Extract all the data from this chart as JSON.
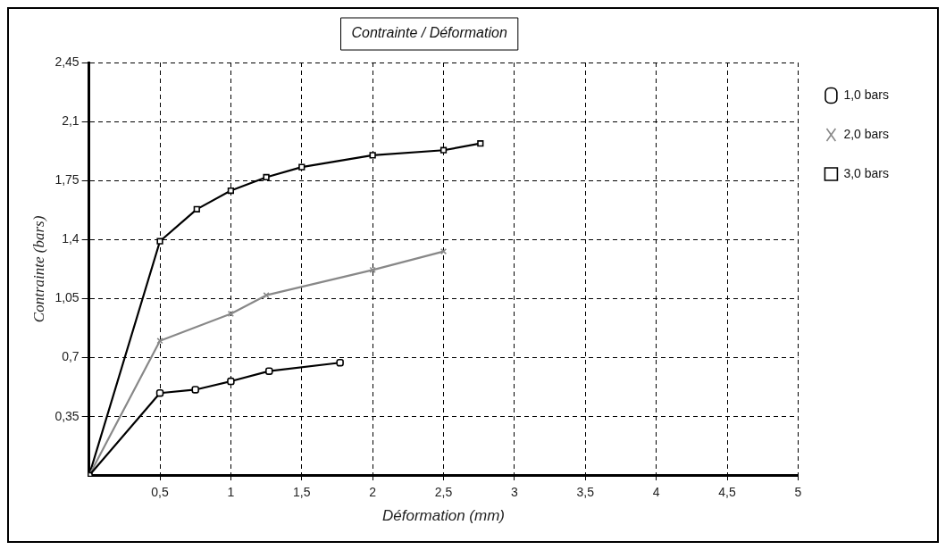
{
  "chart_data": {
    "type": "line",
    "title": "Contrainte / Déformation",
    "xlabel": "Déformation (mm)",
    "ylabel": "Contrainte (bars)",
    "xlim": [
      0,
      5
    ],
    "xticks": [
      {
        "value": 0.5,
        "label": "0,5"
      },
      1,
      {
        "value": 1.5,
        "label": "1,5"
      },
      2,
      {
        "value": 2.5,
        "label": "2,5"
      },
      3,
      {
        "value": 3.5,
        "label": "3,5"
      },
      4,
      {
        "value": 4.5,
        "label": "4,5"
      },
      5
    ],
    "ylim": [
      0,
      2.45
    ],
    "yticks": [
      {
        "value": 0.35,
        "label": "0,35"
      },
      {
        "value": 0.7,
        "label": "0,7"
      },
      {
        "value": 1.05,
        "label": "1,05"
      },
      {
        "value": 1.4,
        "label": "1,4"
      },
      {
        "value": 1.75,
        "label": "1,75"
      },
      {
        "value": 2.1,
        "label": "2,1"
      },
      {
        "value": 2.45,
        "label": "2,45"
      }
    ],
    "grid": true,
    "legend": "right",
    "line_style": "solid",
    "series": [
      {
        "name": "1,0 bars",
        "color": "#000000",
        "marker": "circle",
        "x": [
          0,
          0.5,
          0.75,
          1,
          1.27,
          1.77
        ],
        "values": [
          0,
          0.49,
          0.51,
          0.56,
          0.62,
          0.67
        ]
      },
      {
        "name": "2,0 bars",
        "color": "#888888",
        "marker": "cross",
        "x": [
          0,
          0.5,
          1,
          1.25,
          2,
          2.5
        ],
        "values": [
          0,
          0.8,
          0.96,
          1.07,
          1.22,
          1.33
        ]
      },
      {
        "name": "3,0 bars",
        "color": "#000000",
        "marker": "square",
        "x": [
          0,
          0.5,
          0.76,
          1,
          1.25,
          1.5,
          2,
          2.5,
          2.76
        ],
        "values": [
          0,
          1.39,
          1.58,
          1.69,
          1.77,
          1.83,
          1.9,
          1.93,
          1.97
        ]
      }
    ]
  }
}
